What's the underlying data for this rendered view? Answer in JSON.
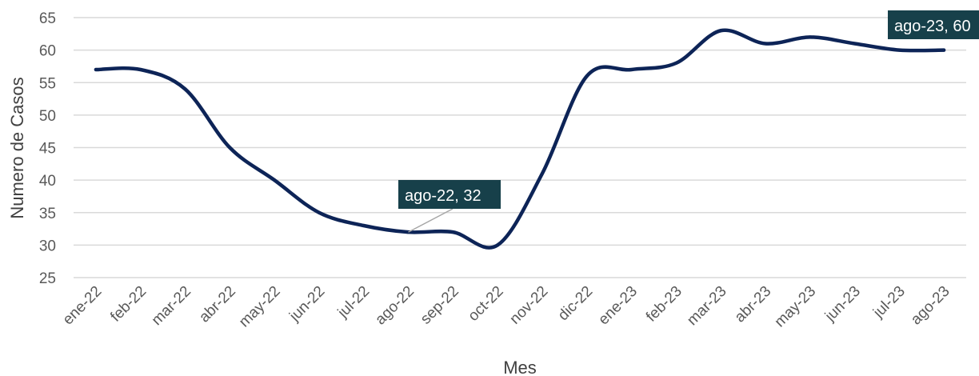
{
  "chart_data": {
    "type": "line",
    "title": "",
    "xlabel": "Mes",
    "ylabel": "Numero de Casos",
    "ylim": [
      25,
      65
    ],
    "yticks": [
      25,
      30,
      35,
      40,
      45,
      50,
      55,
      60,
      65
    ],
    "grid": "horizontal",
    "categories": [
      "ene-22",
      "feb-22",
      "mar-22",
      "abr-22",
      "may-22",
      "jun-22",
      "jul-22",
      "ago-22",
      "sep-22",
      "oct-22",
      "nov-22",
      "dic-22",
      "ene-23",
      "feb-23",
      "mar-23",
      "abr-23",
      "may-23",
      "jun-23",
      "jul-23",
      "ago-23"
    ],
    "series": [
      {
        "values": [
          57,
          57,
          54,
          45,
          40,
          35,
          33,
          32,
          32,
          30,
          41,
          56,
          57,
          58,
          63,
          61,
          62,
          61,
          60,
          60
        ]
      }
    ],
    "annotations": [
      {
        "text": "ago-22, 32"
      },
      {
        "text": "ago-23, 60"
      }
    ],
    "colors": {
      "line": "#0d2457",
      "grid": "#d9d9d9",
      "callout_bg": "#17404a",
      "callout_line": "#a6a6a6"
    }
  }
}
